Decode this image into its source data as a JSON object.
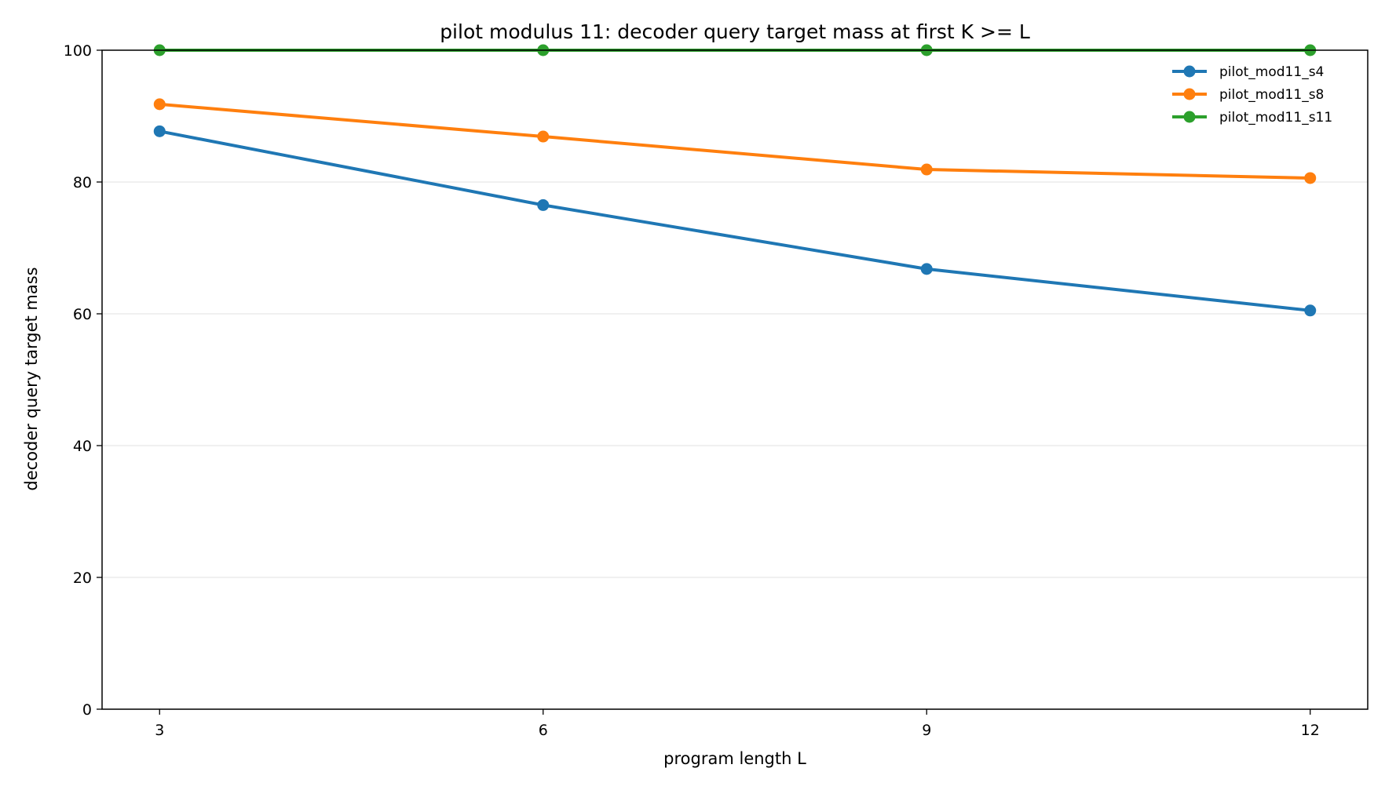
{
  "chart_data": {
    "type": "line",
    "title": "pilot modulus 11: decoder query target mass at first K >= L",
    "xlabel": "program length L",
    "ylabel": "decoder query target mass",
    "x": [
      3,
      6,
      9,
      12
    ],
    "xlim": [
      2.55,
      12.45
    ],
    "ylim": [
      0,
      100
    ],
    "xticks": [
      3,
      6,
      9,
      12
    ],
    "yticks": [
      0,
      20,
      40,
      60,
      80,
      100
    ],
    "grid": "y-major",
    "legend_position": "top-right",
    "series": [
      {
        "name": "pilot_mod11_s4",
        "color": "#1f77b4",
        "values": [
          87.7,
          76.5,
          66.8,
          60.5
        ]
      },
      {
        "name": "pilot_mod11_s8",
        "color": "#ff7f0e",
        "values": [
          91.8,
          86.9,
          81.9,
          80.6
        ]
      },
      {
        "name": "pilot_mod11_s11",
        "color": "#2ca02c",
        "values": [
          100,
          100,
          100,
          100
        ]
      }
    ]
  }
}
